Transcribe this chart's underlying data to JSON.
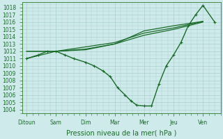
{
  "xlabel": "Pression niveau de la mer( hPa )",
  "background_color": "#ceeaea",
  "grid_color": "#aacfcf",
  "line_color": "#1a6b2a",
  "ylim": [
    1003.5,
    1018.7
  ],
  "yticks": [
    1004,
    1005,
    1006,
    1007,
    1008,
    1009,
    1010,
    1011,
    1012,
    1013,
    1014,
    1015,
    1016,
    1017,
    1018
  ],
  "xlabels": [
    "Ditoun",
    "Sam",
    "Dim",
    "Mar",
    "Mer",
    "Jeu",
    "Ven"
  ],
  "xtick_positions": [
    0,
    1,
    2,
    3,
    4,
    5,
    6
  ],
  "xlim": [
    -0.15,
    6.6
  ],
  "ensemble_lines": [
    {
      "x": [
        0,
        1,
        2,
        3,
        4,
        5,
        6
      ],
      "y": [
        1012.0,
        1012.0,
        1012.3,
        1013.0,
        1014.2,
        1015.0,
        1016.0
      ]
    },
    {
      "x": [
        0,
        1,
        2,
        3,
        4,
        5,
        6
      ],
      "y": [
        1012.0,
        1012.0,
        1012.6,
        1013.2,
        1014.5,
        1015.2,
        1016.1
      ]
    },
    {
      "x": [
        0,
        1,
        2,
        3,
        4,
        5,
        6
      ],
      "y": [
        1011.0,
        1012.0,
        1012.2,
        1013.0,
        1014.8,
        1015.5,
        1016.1
      ]
    }
  ],
  "main_line": {
    "x": [
      0,
      0.4,
      0.7,
      1.0,
      1.3,
      1.6,
      2.0,
      2.3,
      2.6,
      2.85,
      3.1,
      3.35,
      3.55,
      3.75,
      4.0,
      4.25,
      4.5,
      4.75,
      5.0,
      5.25,
      5.5,
      5.75,
      6.0,
      6.4
    ],
    "y": [
      1011,
      1011.5,
      1012,
      1012,
      1011.5,
      1011,
      1010.5,
      1010,
      1009.3,
      1008.5,
      1007,
      1006,
      1005.2,
      1004.6,
      1004.5,
      1004.5,
      1007.5,
      1010,
      1011.5,
      1013.2,
      1015.5,
      1017,
      1018.3,
      1016
    ]
  },
  "tick_fontsize": 5.5,
  "xlabel_fontsize": 7.0
}
